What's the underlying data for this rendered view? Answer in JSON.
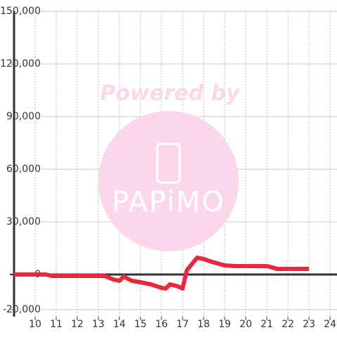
{
  "chart_data": {
    "type": "line",
    "watermark": {
      "line1": "Powered by",
      "line2": "PAPiMO"
    },
    "x": [
      9,
      10.5,
      10.8,
      13.3,
      13.7,
      14,
      14.2,
      14.6,
      15,
      15.5,
      16,
      16.2,
      16.4,
      16.8,
      17,
      17.2,
      17.5,
      17.7,
      18,
      18.4,
      19,
      19.5,
      21,
      21.5,
      23
    ],
    "series": [
      {
        "color": "#e8293c",
        "values": [
          0,
          0,
          -800,
          -800,
          -2800,
          -3600,
          -1200,
          -3600,
          -4400,
          -5600,
          -7600,
          -8000,
          -5600,
          -6800,
          -8000,
          2400,
          6800,
          9600,
          8800,
          7200,
          5200,
          4800,
          4800,
          3200,
          3200
        ]
      }
    ],
    "xlim": [
      9,
      24.33
    ],
    "ylim": [
      -24000,
      150000
    ],
    "xticks": [
      10,
      11,
      12,
      13,
      14,
      15,
      16,
      17,
      18,
      19,
      20,
      21,
      22,
      23,
      24
    ],
    "yticks": [
      {
        "value": -20000,
        "label": "-20,000"
      },
      0,
      {
        "value": 30000,
        "label": "30,000"
      },
      {
        "value": 60000,
        "label": "60,000"
      },
      {
        "value": 90000,
        "label": "90,000"
      },
      {
        "value": 120000,
        "label": "120,000"
      },
      {
        "value": 150000,
        "label": "150,000"
      }
    ],
    "grid": true
  }
}
